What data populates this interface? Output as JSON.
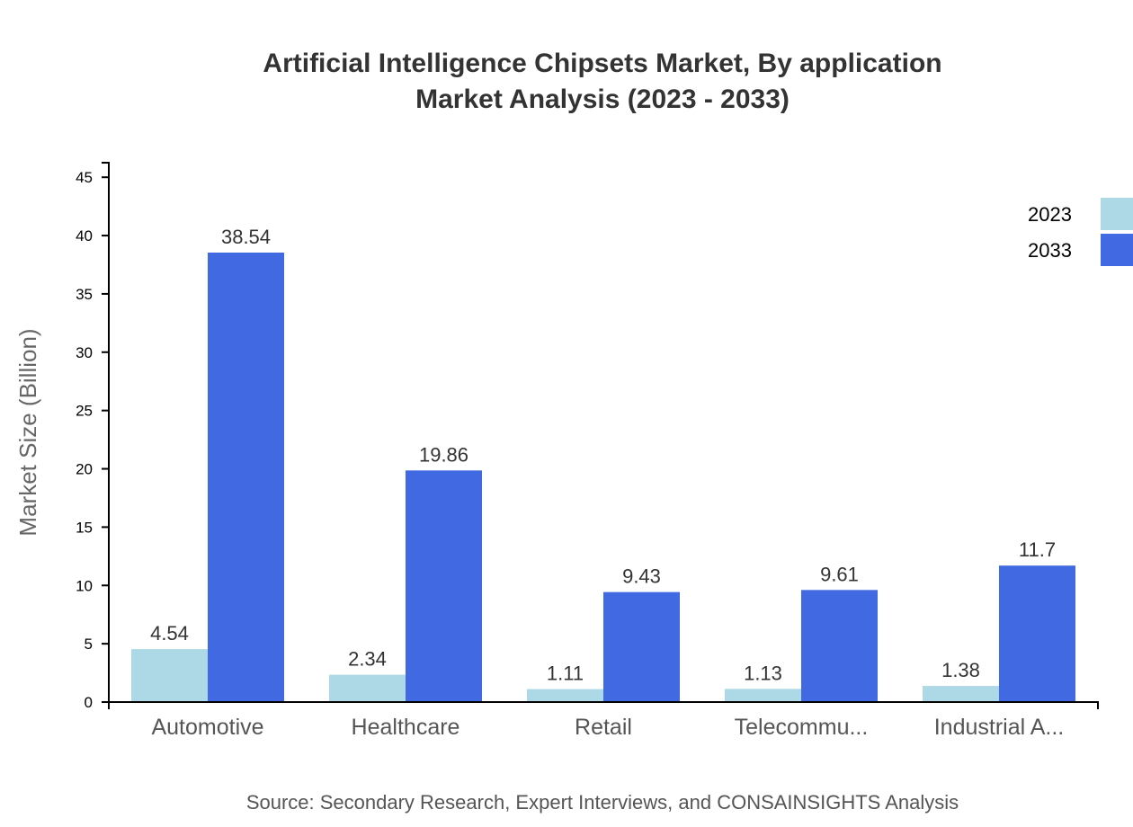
{
  "chart_data": {
    "type": "bar",
    "title": [
      "Artificial Intelligence Chipsets Market, By application",
      "Market Analysis (2023 - 2033)"
    ],
    "xlabel": "",
    "ylabel": "Market Size (Billion)",
    "categories": [
      "Automotive",
      "Healthcare",
      "Retail",
      "Telecommu...",
      "Industrial A..."
    ],
    "series": [
      {
        "name": "2023",
        "color": "#add8e6",
        "values": [
          4.54,
          2.34,
          1.11,
          1.13,
          1.38
        ]
      },
      {
        "name": "2033",
        "color": "#4169e1",
        "values": [
          38.54,
          19.86,
          9.43,
          9.61,
          11.7
        ]
      }
    ],
    "ylim": [
      0,
      46.248
    ],
    "yticks": [
      0,
      5,
      10,
      15,
      20,
      25,
      30,
      35,
      40,
      45
    ],
    "grid": false,
    "legend": "top-right",
    "source": "Source: Secondary Research, Expert Interviews, and CONSAINSIGHTS Analysis"
  }
}
